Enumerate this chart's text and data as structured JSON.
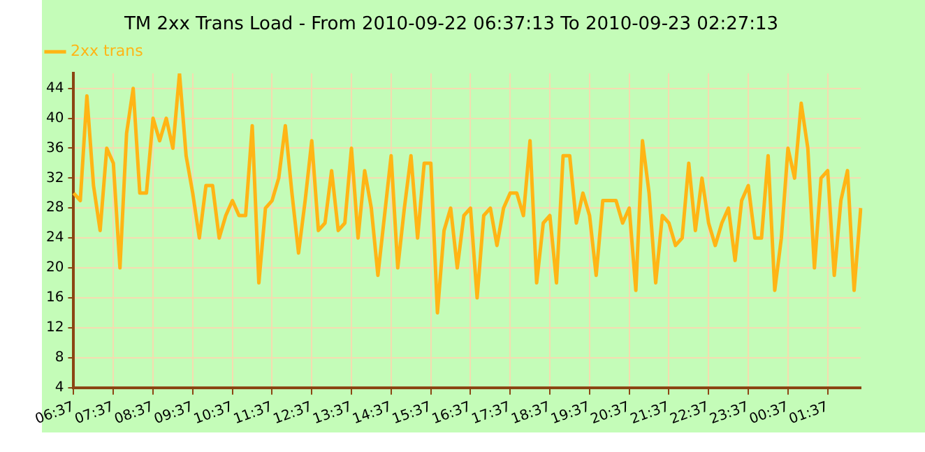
{
  "chart_data": {
    "type": "line",
    "title": "TM 2xx Trans Load - From 2010-09-22 06:37:13 To 2010-09-23 02:27:13",
    "categories": [
      "06:37",
      null,
      null,
      null,
      null,
      null,
      "07:37",
      null,
      null,
      null,
      null,
      null,
      "08:37",
      null,
      null,
      null,
      null,
      null,
      "09:37",
      null,
      null,
      null,
      null,
      null,
      "10:37",
      null,
      null,
      null,
      null,
      null,
      "11:37",
      null,
      null,
      null,
      null,
      null,
      "12:37",
      null,
      null,
      null,
      null,
      null,
      "13:37",
      null,
      null,
      null,
      null,
      null,
      "14:37",
      null,
      null,
      null,
      null,
      null,
      "15:37",
      null,
      null,
      null,
      null,
      null,
      "16:37",
      null,
      null,
      null,
      null,
      null,
      "17:37",
      null,
      null,
      null,
      null,
      null,
      "18:37",
      null,
      null,
      null,
      null,
      null,
      "19:37",
      null,
      null,
      null,
      null,
      null,
      "20:37",
      null,
      null,
      null,
      null,
      null,
      "21:37",
      null,
      null,
      null,
      null,
      null,
      "22:37",
      null,
      null,
      null,
      null,
      null,
      "23:37",
      null,
      null,
      null,
      null,
      null,
      "00:37",
      null,
      null,
      null,
      null,
      null,
      "01:37",
      null,
      null,
      null,
      null,
      null
    ],
    "series": [
      {
        "name": "2xx trans",
        "color": "#ffb515",
        "values": [
          30,
          29,
          43,
          31,
          25,
          36,
          34,
          20,
          38,
          44,
          30,
          30,
          40,
          37,
          40,
          36,
          46,
          35,
          30,
          24,
          31,
          31,
          24,
          27,
          29,
          27,
          27,
          39,
          18,
          28,
          29,
          32,
          39,
          30,
          22,
          29,
          37,
          25,
          26,
          33,
          25,
          26,
          36,
          24,
          33,
          28,
          19,
          27,
          35,
          20,
          28,
          35,
          24,
          34,
          34,
          14,
          25,
          28,
          20,
          27,
          28,
          16,
          27,
          28,
          23,
          28,
          30,
          30,
          27,
          37,
          18,
          26,
          27,
          18,
          35,
          35,
          26,
          30,
          27,
          19,
          29,
          29,
          29,
          26,
          28,
          17,
          37,
          30,
          18,
          27,
          26,
          23,
          24,
          34,
          25,
          32,
          26,
          23,
          26,
          28,
          21,
          29,
          31,
          24,
          24,
          35,
          17,
          24,
          36,
          32,
          42,
          36,
          20,
          32,
          33,
          19,
          29,
          33,
          17,
          28
        ]
      }
    ],
    "ylim": [
      4,
      46
    ],
    "yticks": [
      4,
      8,
      12,
      16,
      20,
      24,
      28,
      32,
      36,
      40,
      44
    ],
    "grid": true,
    "legend": "top left",
    "marker": "none",
    "line_style": "solid"
  }
}
